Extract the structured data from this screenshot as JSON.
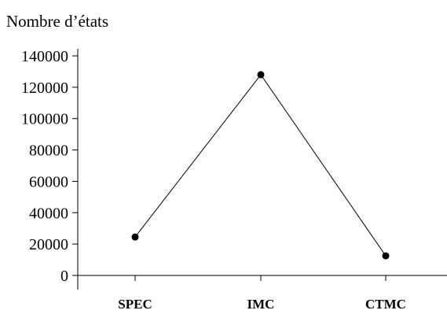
{
  "chart_data": {
    "type": "line",
    "title": "",
    "xlabel": "",
    "ylabel": "Nombre d’états",
    "categories": [
      "SPEC",
      "IMC",
      "CTMC"
    ],
    "series": [
      {
        "values": [
          24500,
          128000,
          12500
        ]
      }
    ],
    "ylim": [
      0,
      140000
    ],
    "yticks": [
      0,
      20000,
      40000,
      60000,
      80000,
      100000,
      120000,
      140000
    ],
    "ytick_labels": [
      "0",
      "20000",
      "40000",
      "60000",
      "80000",
      "100000",
      "120000",
      "140000"
    ],
    "grid": false,
    "legend": "none",
    "line_color": "#000000",
    "marker_color": "#000000"
  }
}
